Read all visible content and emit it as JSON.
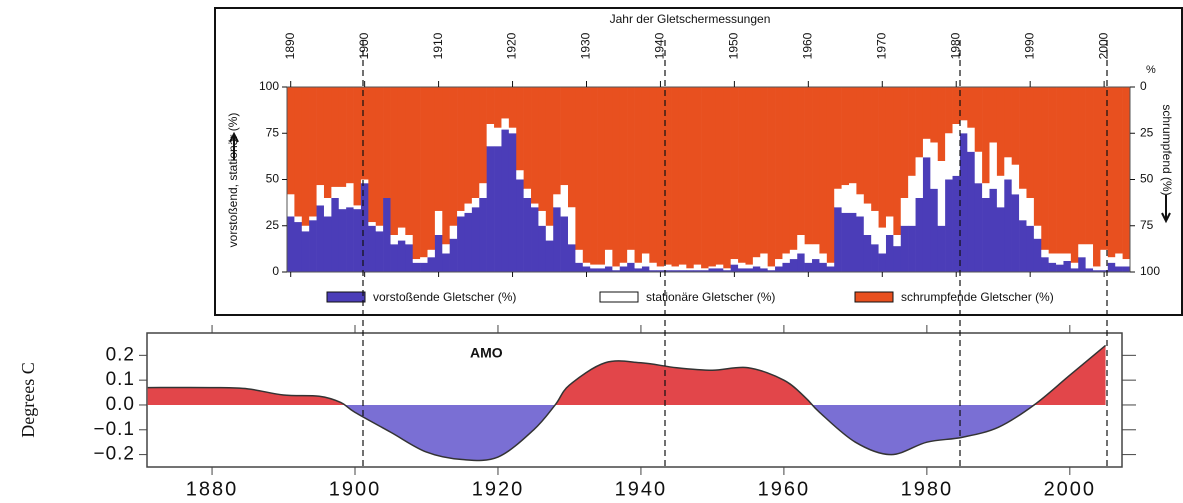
{
  "chart_data": [
    {
      "type": "bar",
      "stacked": true,
      "title": "Jahr der Gletschermessungen",
      "ylabel": "vorstoßend, stationär (%)",
      "y2label": "schrumpfend (%)",
      "y2unit": "%",
      "x": [
        1890,
        1891,
        1892,
        1893,
        1894,
        1895,
        1896,
        1897,
        1898,
        1899,
        1900,
        1901,
        1902,
        1903,
        1904,
        1905,
        1906,
        1907,
        1908,
        1909,
        1910,
        1911,
        1912,
        1913,
        1914,
        1915,
        1916,
        1917,
        1918,
        1919,
        1920,
        1921,
        1922,
        1923,
        1924,
        1925,
        1926,
        1927,
        1928,
        1929,
        1930,
        1931,
        1932,
        1933,
        1934,
        1935,
        1936,
        1937,
        1938,
        1939,
        1940,
        1941,
        1942,
        1943,
        1944,
        1945,
        1946,
        1947,
        1948,
        1949,
        1950,
        1951,
        1952,
        1953,
        1954,
        1955,
        1956,
        1957,
        1958,
        1959,
        1960,
        1961,
        1962,
        1963,
        1964,
        1965,
        1966,
        1967,
        1968,
        1969,
        1970,
        1971,
        1972,
        1973,
        1974,
        1975,
        1976,
        1977,
        1978,
        1979,
        1980,
        1981,
        1982,
        1983,
        1984,
        1985,
        1986,
        1987,
        1988,
        1989,
        1990,
        1991,
        1992,
        1993,
        1994,
        1995,
        1996,
        1997,
        1998,
        1999,
        2000,
        2001,
        2002,
        2003
      ],
      "xlim": [
        1889.5,
        2003.5
      ],
      "xticks": [
        1890,
        1900,
        1910,
        1920,
        1930,
        1940,
        1950,
        1960,
        1970,
        1980,
        1990,
        2000
      ],
      "ylim": [
        0,
        100
      ],
      "yticks": [
        0,
        25,
        50,
        75,
        100
      ],
      "y2lim": [
        100,
        0
      ],
      "y2ticks": [
        0,
        25,
        50,
        75,
        100
      ],
      "series": [
        {
          "name": "vorstoßende Gletscher (%)",
          "color": "#4b3db8",
          "values": [
            30,
            27,
            22,
            28,
            36,
            30,
            40,
            34,
            35,
            34,
            48,
            25,
            22,
            40,
            15,
            17,
            15,
            5,
            5,
            8,
            20,
            10,
            18,
            30,
            32,
            35,
            40,
            68,
            68,
            77,
            75,
            50,
            40,
            35,
            25,
            17,
            35,
            30,
            15,
            5,
            3,
            2,
            2,
            3,
            1,
            3,
            5,
            2,
            3,
            1,
            1,
            1,
            1,
            1,
            1,
            1,
            1,
            2,
            2,
            1,
            4,
            2,
            2,
            3,
            2,
            1,
            3,
            5,
            7,
            10,
            5,
            7,
            5,
            3,
            35,
            32,
            32,
            30,
            20,
            15,
            10,
            20,
            14,
            25,
            25,
            40,
            62,
            45,
            25,
            50,
            52,
            75,
            65,
            48,
            40,
            45,
            35,
            50,
            42,
            28,
            25,
            18,
            8,
            5,
            4,
            6,
            2,
            8,
            2,
            1,
            1,
            5,
            3,
            3
          ]
        },
        {
          "name": "stationäre Gletscher (%)",
          "color": "#ffffff",
          "values": [
            12,
            3,
            3,
            2,
            11,
            10,
            6,
            12,
            13,
            2,
            2,
            2,
            3,
            0,
            5,
            7,
            5,
            2,
            3,
            4,
            13,
            5,
            7,
            3,
            5,
            5,
            8,
            12,
            10,
            6,
            3,
            5,
            5,
            2,
            8,
            8,
            7,
            17,
            20,
            7,
            2,
            2,
            2,
            9,
            2,
            2,
            7,
            3,
            7,
            4,
            2,
            3,
            2,
            3,
            1,
            3,
            1,
            1,
            2,
            1,
            3,
            3,
            2,
            5,
            8,
            2,
            4,
            5,
            5,
            10,
            10,
            8,
            5,
            2,
            10,
            15,
            16,
            12,
            17,
            18,
            14,
            10,
            6,
            15,
            27,
            22,
            10,
            25,
            35,
            25,
            28,
            7,
            13,
            17,
            8,
            25,
            17,
            12,
            16,
            17,
            15,
            7,
            4,
            5,
            6,
            4,
            3,
            7,
            13,
            2,
            11,
            3,
            7,
            4
          ]
        },
        {
          "name": "schrumpfende Gletscher (%)",
          "color": "#e8501f",
          "values": [
            58,
            70,
            75,
            70,
            53,
            60,
            54,
            54,
            52,
            64,
            50,
            73,
            75,
            60,
            80,
            76,
            80,
            93,
            92,
            88,
            67,
            85,
            75,
            67,
            63,
            60,
            52,
            20,
            22,
            17,
            22,
            45,
            55,
            63,
            67,
            75,
            58,
            53,
            65,
            88,
            95,
            96,
            96,
            88,
            97,
            95,
            88,
            95,
            90,
            95,
            97,
            96,
            97,
            96,
            98,
            96,
            98,
            97,
            96,
            98,
            93,
            95,
            96,
            92,
            90,
            97,
            93,
            90,
            88,
            80,
            85,
            85,
            90,
            95,
            55,
            53,
            52,
            58,
            63,
            67,
            76,
            70,
            80,
            60,
            48,
            38,
            28,
            30,
            40,
            25,
            20,
            18,
            22,
            35,
            52,
            30,
            48,
            38,
            42,
            55,
            60,
            75,
            88,
            90,
            90,
            90,
            95,
            85,
            85,
            97,
            88,
            92,
            90,
            93
          ]
        }
      ]
    },
    {
      "type": "area",
      "annotation": "AMO",
      "ylabel": "Degrees C",
      "x": [
        1871,
        1880,
        1885,
        1890,
        1895,
        1898,
        1900,
        1905,
        1910,
        1915,
        1920,
        1925,
        1928,
        1930,
        1935,
        1940,
        1945,
        1950,
        1955,
        1960,
        1963,
        1965,
        1970,
        1975,
        1980,
        1985,
        1990,
        1995,
        2000,
        2005
      ],
      "values": [
        0.07,
        0.07,
        0.065,
        0.04,
        0.035,
        0.01,
        -0.03,
        -0.11,
        -0.19,
        -0.22,
        -0.21,
        -0.1,
        0,
        0.08,
        0.17,
        0.17,
        0.15,
        0.14,
        0.15,
        0.1,
        0.03,
        -0.03,
        -0.15,
        -0.2,
        -0.15,
        -0.13,
        -0.09,
        0,
        0.12,
        0.24
      ],
      "fill_above": "#e2464a",
      "fill_below": "#7a6fd4",
      "line_color": "#333333",
      "xlim": [
        1870.9,
        2007.3
      ],
      "xticks": [
        1880,
        1900,
        1920,
        1940,
        1960,
        1980,
        2000
      ],
      "ylim": [
        -0.25,
        0.29
      ],
      "yticks": [
        {
          "value": -0.2,
          "label": "−0.2"
        },
        {
          "value": -0.1,
          "label": "−0.1"
        },
        {
          "value": 0,
          "label": "0.0"
        },
        0.1,
        0.2
      ]
    }
  ]
}
